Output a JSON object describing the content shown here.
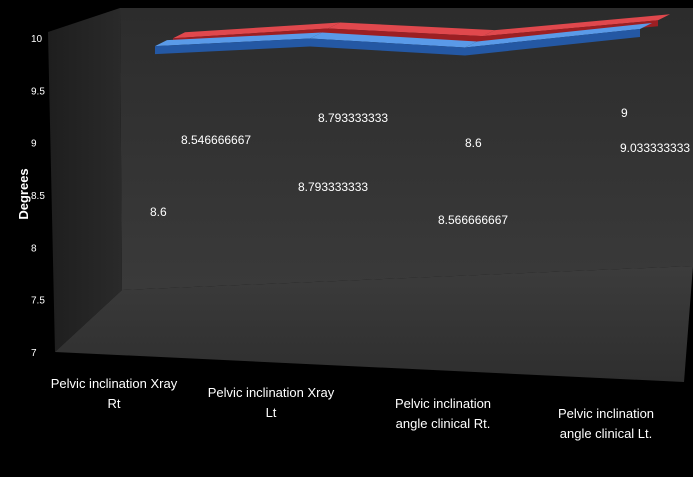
{
  "chart_data": {
    "type": "line",
    "ylabel": "Degrees",
    "ylim": [
      7,
      10
    ],
    "yticks": [
      "7",
      "7.5",
      "8",
      "8.5",
      "9",
      "9.5",
      "10"
    ],
    "categories": [
      [
        "Pelvic inclination Xray",
        "Rt"
      ],
      [
        "Pelvic inclination Xray",
        "Lt"
      ],
      [
        "Pelvic inclination",
        "angle clinical Rt."
      ],
      [
        "Pelvic inclination",
        "angle clinical Lt."
      ]
    ],
    "series": [
      {
        "values": [
          8.546666667,
          8.793333333,
          8.6,
          9
        ],
        "labels": [
          "8.546666667",
          "8.793333333",
          "8.6",
          "9"
        ],
        "color": "#c0262b"
      },
      {
        "values": [
          8.6,
          8.793333333,
          8.566666667,
          9.033333333
        ],
        "labels": [
          "8.6",
          "8.793333333",
          "8.566666667",
          "9.033333333"
        ],
        "color": "#2f6fc4"
      }
    ],
    "grid": false,
    "legend": "none"
  }
}
